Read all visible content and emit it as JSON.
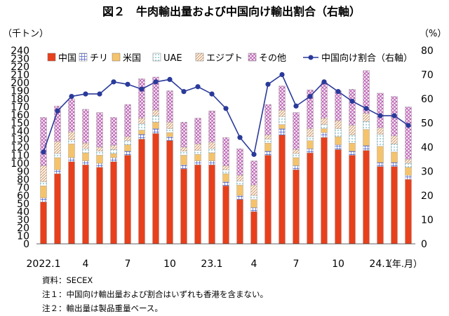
{
  "chart_data": {
    "type": "bar",
    "subtype": "stacked-bar-with-line",
    "title": "図２　牛肉輸出量および中国向け輸出割合（右軸）",
    "left_unit": "（千トン）",
    "right_unit": "（%）",
    "x_unit": "（年.月）",
    "left_ylim": [
      0,
      240
    ],
    "left_ticks": [
      "0",
      "10",
      "20",
      "30",
      "40",
      "50",
      "60",
      "70",
      "80",
      "90",
      "100",
      "110",
      "120",
      "130",
      "140",
      "150",
      "160",
      "170",
      "180",
      "190",
      "200",
      "210",
      "220",
      "230",
      "240"
    ],
    "right_ylim": [
      0,
      80
    ],
    "right_ticks": [
      "0",
      "10",
      "20",
      "30",
      "40",
      "50",
      "60",
      "70",
      "80"
    ],
    "x_tick_labels": [
      "2022.1",
      "",
      "",
      "4",
      "",
      "",
      "7",
      "",
      "",
      "10",
      "",
      "",
      "23.1",
      "",
      "",
      "4",
      "",
      "",
      "7",
      "",
      "",
      "10",
      "",
      "",
      "24.1",
      "",
      ""
    ],
    "legend_position": "top",
    "grid": false,
    "series": [
      {
        "name": "中国",
        "key": "china",
        "color": "#e8401c",
        "pattern": "solid",
        "values": [
          52,
          87,
          102,
          98,
          95,
          102,
          110,
          130,
          137,
          128,
          93,
          98,
          98,
          72,
          55,
          40,
          110,
          135,
          92,
          113,
          132,
          117,
          110,
          116,
          96,
          96,
          80
        ]
      },
      {
        "name": "チリ",
        "key": "chile",
        "color": "#4a5ac8",
        "pattern": "grid",
        "values": [
          5,
          5,
          5,
          5,
          5,
          5,
          5,
          6,
          6,
          5,
          5,
          5,
          5,
          5,
          5,
          5,
          5,
          8,
          5,
          5,
          6,
          6,
          5,
          6,
          5,
          5,
          5
        ]
      },
      {
        "name": "米国",
        "key": "usa",
        "color": "#f5c36b",
        "pattern": "solid",
        "values": [
          15,
          15,
          17,
          10,
          10,
          5,
          8,
          5,
          8,
          5,
          12,
          8,
          10,
          10,
          13,
          10,
          10,
          5,
          10,
          10,
          5,
          10,
          10,
          20,
          20,
          13,
          10
        ]
      },
      {
        "name": "UAE",
        "key": "uae",
        "color": "#5fc0c8",
        "pattern": "dots",
        "values": [
          5,
          5,
          5,
          5,
          5,
          5,
          5,
          8,
          8,
          5,
          5,
          5,
          5,
          5,
          5,
          5,
          5,
          10,
          5,
          5,
          5,
          10,
          10,
          10,
          15,
          10,
          5
        ]
      },
      {
        "name": "エジプト",
        "key": "egypt",
        "color": "#d9a878",
        "pattern": "diag",
        "values": [
          20,
          15,
          10,
          7,
          5,
          5,
          5,
          7,
          7,
          8,
          5,
          8,
          8,
          5,
          7,
          13,
          5,
          8,
          5,
          10,
          8,
          10,
          12,
          10,
          8,
          10,
          5
        ]
      },
      {
        "name": "その他",
        "key": "other",
        "color": "#b04aa8",
        "pattern": "cross",
        "values": [
          60,
          44,
          41,
          42,
          43,
          35,
          40,
          49,
          41,
          39,
          31,
          32,
          39,
          35,
          33,
          30,
          38,
          30,
          46,
          48,
          44,
          37,
          45,
          53,
          43,
          49,
          65
        ]
      },
      {
        "name": "中国向け割合（右軸）",
        "key": "china_share",
        "color": "#2a3a9a",
        "type": "line",
        "axis": "right",
        "values": [
          38,
          55,
          61,
          62,
          62,
          67,
          66,
          64,
          67,
          68,
          63,
          65,
          62,
          56,
          44,
          37,
          66,
          70,
          57,
          61,
          67,
          63,
          59,
          56,
          53,
          53,
          49
        ]
      }
    ]
  },
  "notes": {
    "source": "資料：SECEX",
    "note1": "注１：中国向け輸出量および割合はいずれも香港を含まない。",
    "note2": "注２：輸出量は製品重量ベース。"
  }
}
